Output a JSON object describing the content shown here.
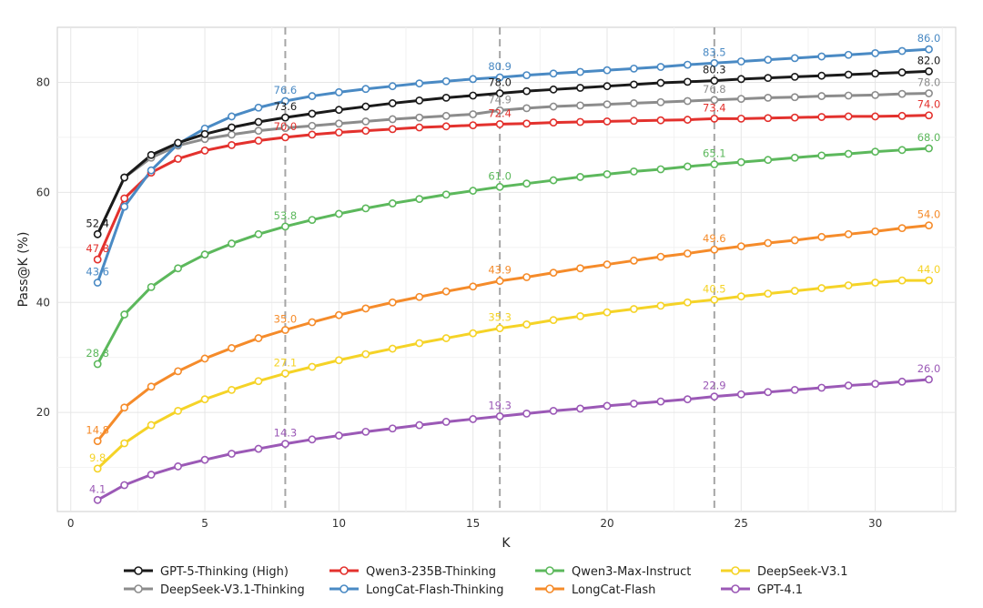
{
  "chart_data": {
    "type": "line",
    "title": "",
    "xlabel": "K",
    "ylabel": "Pass@K (%)",
    "xlim": [
      -0.5,
      33
    ],
    "ylim": [
      2,
      90
    ],
    "xticks": [
      0,
      5,
      10,
      15,
      20,
      25,
      30
    ],
    "yticks": [
      20,
      40,
      60,
      80
    ],
    "grid": true,
    "legend_position": "bottom",
    "reference_lines_x": [
      8,
      16,
      24
    ],
    "x": [
      1,
      2,
      3,
      4,
      5,
      6,
      7,
      8,
      9,
      10,
      11,
      12,
      13,
      14,
      15,
      16,
      17,
      18,
      19,
      20,
      21,
      22,
      23,
      24,
      25,
      26,
      27,
      28,
      29,
      30,
      31,
      32
    ],
    "series": [
      {
        "name": "GPT-5-Thinking (High)",
        "color": "#1a1a1a",
        "values": [
          52.4,
          62.7,
          66.8,
          69.0,
          70.6,
          71.8,
          72.8,
          73.6,
          74.3,
          75.0,
          75.6,
          76.2,
          76.7,
          77.2,
          77.6,
          78.0,
          78.4,
          78.7,
          79.0,
          79.3,
          79.6,
          79.9,
          80.1,
          80.3,
          80.6,
          80.8,
          81.0,
          81.2,
          81.4,
          81.6,
          81.8,
          82.0
        ],
        "labels": [
          {
            "k": 1,
            "text": "52.4"
          },
          {
            "k": 8,
            "text": "73.6"
          },
          {
            "k": 16,
            "text": "78.0"
          },
          {
            "k": 24,
            "text": "80.3"
          },
          {
            "k": 32,
            "text": "82.0"
          }
        ]
      },
      {
        "name": "Qwen3-235B-Thinking",
        "color": "#e3312d",
        "values": [
          47.8,
          58.9,
          63.6,
          66.1,
          67.6,
          68.6,
          69.4,
          70.0,
          70.5,
          70.9,
          71.2,
          71.5,
          71.8,
          72.0,
          72.2,
          72.4,
          72.5,
          72.7,
          72.8,
          72.9,
          73.0,
          73.1,
          73.2,
          73.4,
          73.4,
          73.5,
          73.6,
          73.7,
          73.8,
          73.8,
          73.9,
          74.0
        ],
        "labels": [
          {
            "k": 1,
            "text": "47.8"
          },
          {
            "k": 8,
            "text": "70.0"
          },
          {
            "k": 16,
            "text": "72.4"
          },
          {
            "k": 24,
            "text": "73.4"
          },
          {
            "k": 32,
            "text": "74.0"
          }
        ]
      },
      {
        "name": "Qwen3-Max-Instruct",
        "color": "#5cb85c",
        "values": [
          28.8,
          37.8,
          42.8,
          46.2,
          48.7,
          50.7,
          52.4,
          53.8,
          55.0,
          56.1,
          57.1,
          58.0,
          58.8,
          59.6,
          60.3,
          61.0,
          61.6,
          62.2,
          62.8,
          63.3,
          63.8,
          64.2,
          64.7,
          65.1,
          65.5,
          65.9,
          66.3,
          66.7,
          67.0,
          67.4,
          67.7,
          68.0
        ],
        "labels": [
          {
            "k": 1,
            "text": "28.8"
          },
          {
            "k": 8,
            "text": "53.8"
          },
          {
            "k": 16,
            "text": "61.0"
          },
          {
            "k": 24,
            "text": "65.1"
          },
          {
            "k": 32,
            "text": "68.0"
          }
        ]
      },
      {
        "name": "DeepSeek-V3.1",
        "color": "#f5d327",
        "values": [
          9.8,
          14.4,
          17.7,
          20.3,
          22.4,
          24.1,
          25.7,
          27.1,
          28.3,
          29.5,
          30.6,
          31.6,
          32.6,
          33.5,
          34.4,
          35.3,
          36.0,
          36.8,
          37.5,
          38.2,
          38.8,
          39.4,
          40.0,
          40.5,
          41.1,
          41.6,
          42.1,
          42.6,
          43.1,
          43.6,
          44.0,
          44.0
        ],
        "labels": [
          {
            "k": 1,
            "text": "9.8"
          },
          {
            "k": 8,
            "text": "27.1"
          },
          {
            "k": 16,
            "text": "35.3"
          },
          {
            "k": 24,
            "text": "40.5"
          },
          {
            "k": 32,
            "text": "44.0"
          }
        ]
      },
      {
        "name": "DeepSeek-V3.1-Thinking",
        "color": "#8c8c8c",
        "values": [
          52.4,
          62.7,
          66.3,
          68.5,
          69.7,
          70.5,
          71.2,
          71.7,
          72.1,
          72.5,
          72.9,
          73.3,
          73.6,
          73.9,
          74.2,
          74.9,
          75.3,
          75.6,
          75.8,
          76.0,
          76.2,
          76.4,
          76.6,
          76.8,
          77.0,
          77.2,
          77.3,
          77.5,
          77.6,
          77.7,
          77.9,
          78.0
        ],
        "labels": [
          {
            "k": 16,
            "text": "74.9"
          },
          {
            "k": 24,
            "text": "76.8"
          },
          {
            "k": 32,
            "text": "78.0"
          }
        ]
      },
      {
        "name": "LongCat-Flash-Thinking",
        "color": "#4a8ac4",
        "values": [
          43.6,
          57.4,
          64.0,
          68.8,
          71.6,
          73.8,
          75.4,
          76.6,
          77.5,
          78.2,
          78.8,
          79.3,
          79.8,
          80.2,
          80.6,
          80.9,
          81.3,
          81.6,
          81.9,
          82.2,
          82.5,
          82.8,
          83.2,
          83.5,
          83.8,
          84.1,
          84.4,
          84.7,
          85.0,
          85.3,
          85.7,
          86.0
        ],
        "labels": [
          {
            "k": 1,
            "text": "43.6"
          },
          {
            "k": 8,
            "text": "76.6"
          },
          {
            "k": 16,
            "text": "80.9"
          },
          {
            "k": 24,
            "text": "83.5"
          },
          {
            "k": 32,
            "text": "86.0"
          }
        ]
      },
      {
        "name": "LongCat-Flash",
        "color": "#f58b2a",
        "values": [
          14.8,
          20.9,
          24.7,
          27.5,
          29.8,
          31.7,
          33.5,
          35.0,
          36.4,
          37.7,
          38.9,
          40.0,
          41.0,
          42.0,
          42.9,
          43.9,
          44.6,
          45.4,
          46.2,
          46.9,
          47.6,
          48.3,
          48.9,
          49.6,
          50.2,
          50.8,
          51.3,
          51.9,
          52.4,
          52.9,
          53.5,
          54.0
        ],
        "labels": [
          {
            "k": 1,
            "text": "14.8"
          },
          {
            "k": 8,
            "text": "35.0"
          },
          {
            "k": 16,
            "text": "43.9"
          },
          {
            "k": 24,
            "text": "49.6"
          },
          {
            "k": 32,
            "text": "54.0"
          }
        ]
      },
      {
        "name": "GPT-4.1",
        "color": "#9b59b6",
        "values": [
          4.1,
          6.8,
          8.7,
          10.2,
          11.4,
          12.5,
          13.4,
          14.3,
          15.1,
          15.8,
          16.5,
          17.1,
          17.7,
          18.3,
          18.8,
          19.3,
          19.8,
          20.3,
          20.7,
          21.2,
          21.6,
          22.0,
          22.4,
          22.9,
          23.3,
          23.7,
          24.1,
          24.5,
          24.9,
          25.2,
          25.6,
          26.0
        ],
        "labels": [
          {
            "k": 1,
            "text": "4.1"
          },
          {
            "k": 8,
            "text": "14.3"
          },
          {
            "k": 16,
            "text": "19.3"
          },
          {
            "k": 24,
            "text": "22.9"
          },
          {
            "k": 32,
            "text": "26.0"
          }
        ]
      }
    ],
    "legend_order": [
      "GPT-5-Thinking (High)",
      "Qwen3-235B-Thinking",
      "Qwen3-Max-Instruct",
      "DeepSeek-V3.1",
      "DeepSeek-V3.1-Thinking",
      "LongCat-Flash-Thinking",
      "LongCat-Flash",
      "GPT-4.1"
    ]
  }
}
